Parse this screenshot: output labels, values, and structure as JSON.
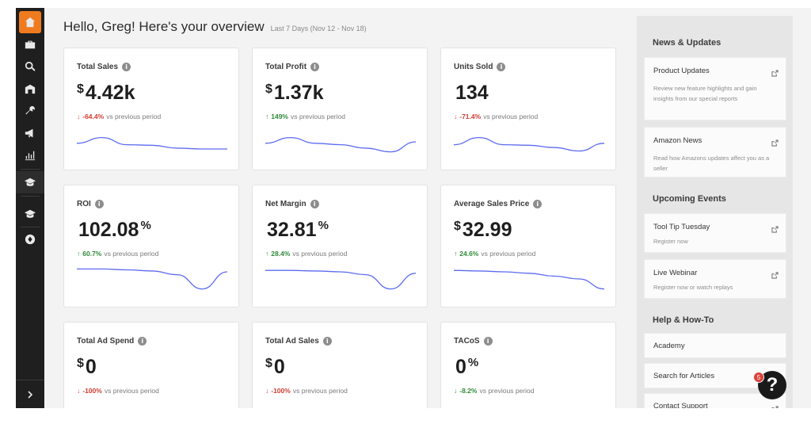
{
  "sidebar": {
    "items": [
      {
        "icon": "home-icon"
      },
      {
        "icon": "briefcase-icon"
      },
      {
        "icon": "search-icon"
      },
      {
        "icon": "warehouse-icon"
      },
      {
        "icon": "wrench-icon"
      },
      {
        "icon": "megaphone-icon"
      },
      {
        "icon": "bar-chart-icon"
      },
      {
        "icon": "graduation-cap-icon"
      },
      {
        "icon": "graduation-cap-icon"
      },
      {
        "icon": "aperture-icon"
      }
    ],
    "collapse_icon": "chevron-right-icon",
    "accent": "#f07b1f"
  },
  "header": {
    "title": "Hello, Greg! Here's your overview",
    "range": "Last 7 Days (Nov 12 - Nov 18)"
  },
  "cards": [
    {
      "title": "Total Sales",
      "currency": "$",
      "value": "4.42",
      "suffix": "k",
      "pct": "",
      "arrow": "↓",
      "change": "-64.4%",
      "direction": "down",
      "note": "vs previous period",
      "spark": [
        0.55,
        0.35,
        0.6,
        0.62,
        0.72,
        0.75,
        0.75
      ]
    },
    {
      "title": "Total Profit",
      "currency": "$",
      "value": "1.37",
      "suffix": "k",
      "pct": "",
      "arrow": "↑",
      "change": "149%",
      "direction": "up",
      "note": "vs previous period",
      "spark": [
        0.55,
        0.35,
        0.55,
        0.6,
        0.72,
        0.85,
        0.5
      ]
    },
    {
      "title": "Units Sold",
      "currency": "",
      "value": "134",
      "suffix": "",
      "pct": "",
      "arrow": "↓",
      "change": "-71.4%",
      "direction": "down",
      "note": "vs previous period",
      "spark": [
        0.6,
        0.35,
        0.6,
        0.62,
        0.7,
        0.82,
        0.55
      ]
    },
    {
      "title": "ROI",
      "currency": "",
      "value": "102.08",
      "suffix": "",
      "pct": "%",
      "arrow": "↑",
      "change": "60.7%",
      "direction": "up",
      "note": "vs previous period",
      "spark": [
        0.15,
        0.15,
        0.18,
        0.22,
        0.35,
        0.85,
        0.25
      ]
    },
    {
      "title": "Net Margin",
      "currency": "",
      "value": "32.81",
      "suffix": "",
      "pct": "%",
      "arrow": "↑",
      "change": "28.4%",
      "direction": "up",
      "note": "vs previous period",
      "spark": [
        0.2,
        0.2,
        0.22,
        0.25,
        0.35,
        0.85,
        0.3
      ]
    },
    {
      "title": "Average Sales Price",
      "currency": "$",
      "value": "32.99",
      "suffix": "",
      "pct": "",
      "arrow": "↑",
      "change": "24.6%",
      "direction": "up",
      "note": "vs previous period",
      "spark": [
        0.2,
        0.22,
        0.25,
        0.3,
        0.4,
        0.5,
        0.85
      ]
    },
    {
      "title": "Total Ad Spend",
      "currency": "$",
      "value": "0",
      "suffix": "",
      "pct": "",
      "arrow": "↓",
      "change": "-100%",
      "direction": "down",
      "note": "vs previous period",
      "spark": []
    },
    {
      "title": "Total Ad Sales",
      "currency": "$",
      "value": "0",
      "suffix": "",
      "pct": "",
      "arrow": "↓",
      "change": "-100%",
      "direction": "down",
      "note": "vs previous period",
      "spark": []
    },
    {
      "title": "TACoS",
      "currency": "",
      "value": "0",
      "suffix": "",
      "pct": "%",
      "arrow": "↓",
      "change": "-8.2%",
      "direction": "down-good",
      "note": "vs previous period",
      "spark": []
    }
  ],
  "panel": {
    "news_heading": "News & Updates",
    "news": [
      {
        "title": "Product Updates",
        "desc": "Review new feature highlights and gain insights from our special reports"
      },
      {
        "title": "Amazon News",
        "desc": "Read how Amazons updates affect you as a seller"
      }
    ],
    "events_heading": "Upcoming Events",
    "events": [
      {
        "title": "Tool Tip Tuesday",
        "desc": "Register now"
      },
      {
        "title": "Live Webinar",
        "desc": "Register now or watch replays"
      }
    ],
    "help_heading": "Help & How-To",
    "help": [
      {
        "title": "Academy"
      },
      {
        "title": "Search for Articles"
      },
      {
        "title": "Contact Support"
      }
    ]
  },
  "help_button": {
    "label": "?",
    "badge": "5"
  },
  "colors": {
    "red": "#d23b30",
    "green": "#2f8a3a",
    "line": "#5c6bf0"
  }
}
